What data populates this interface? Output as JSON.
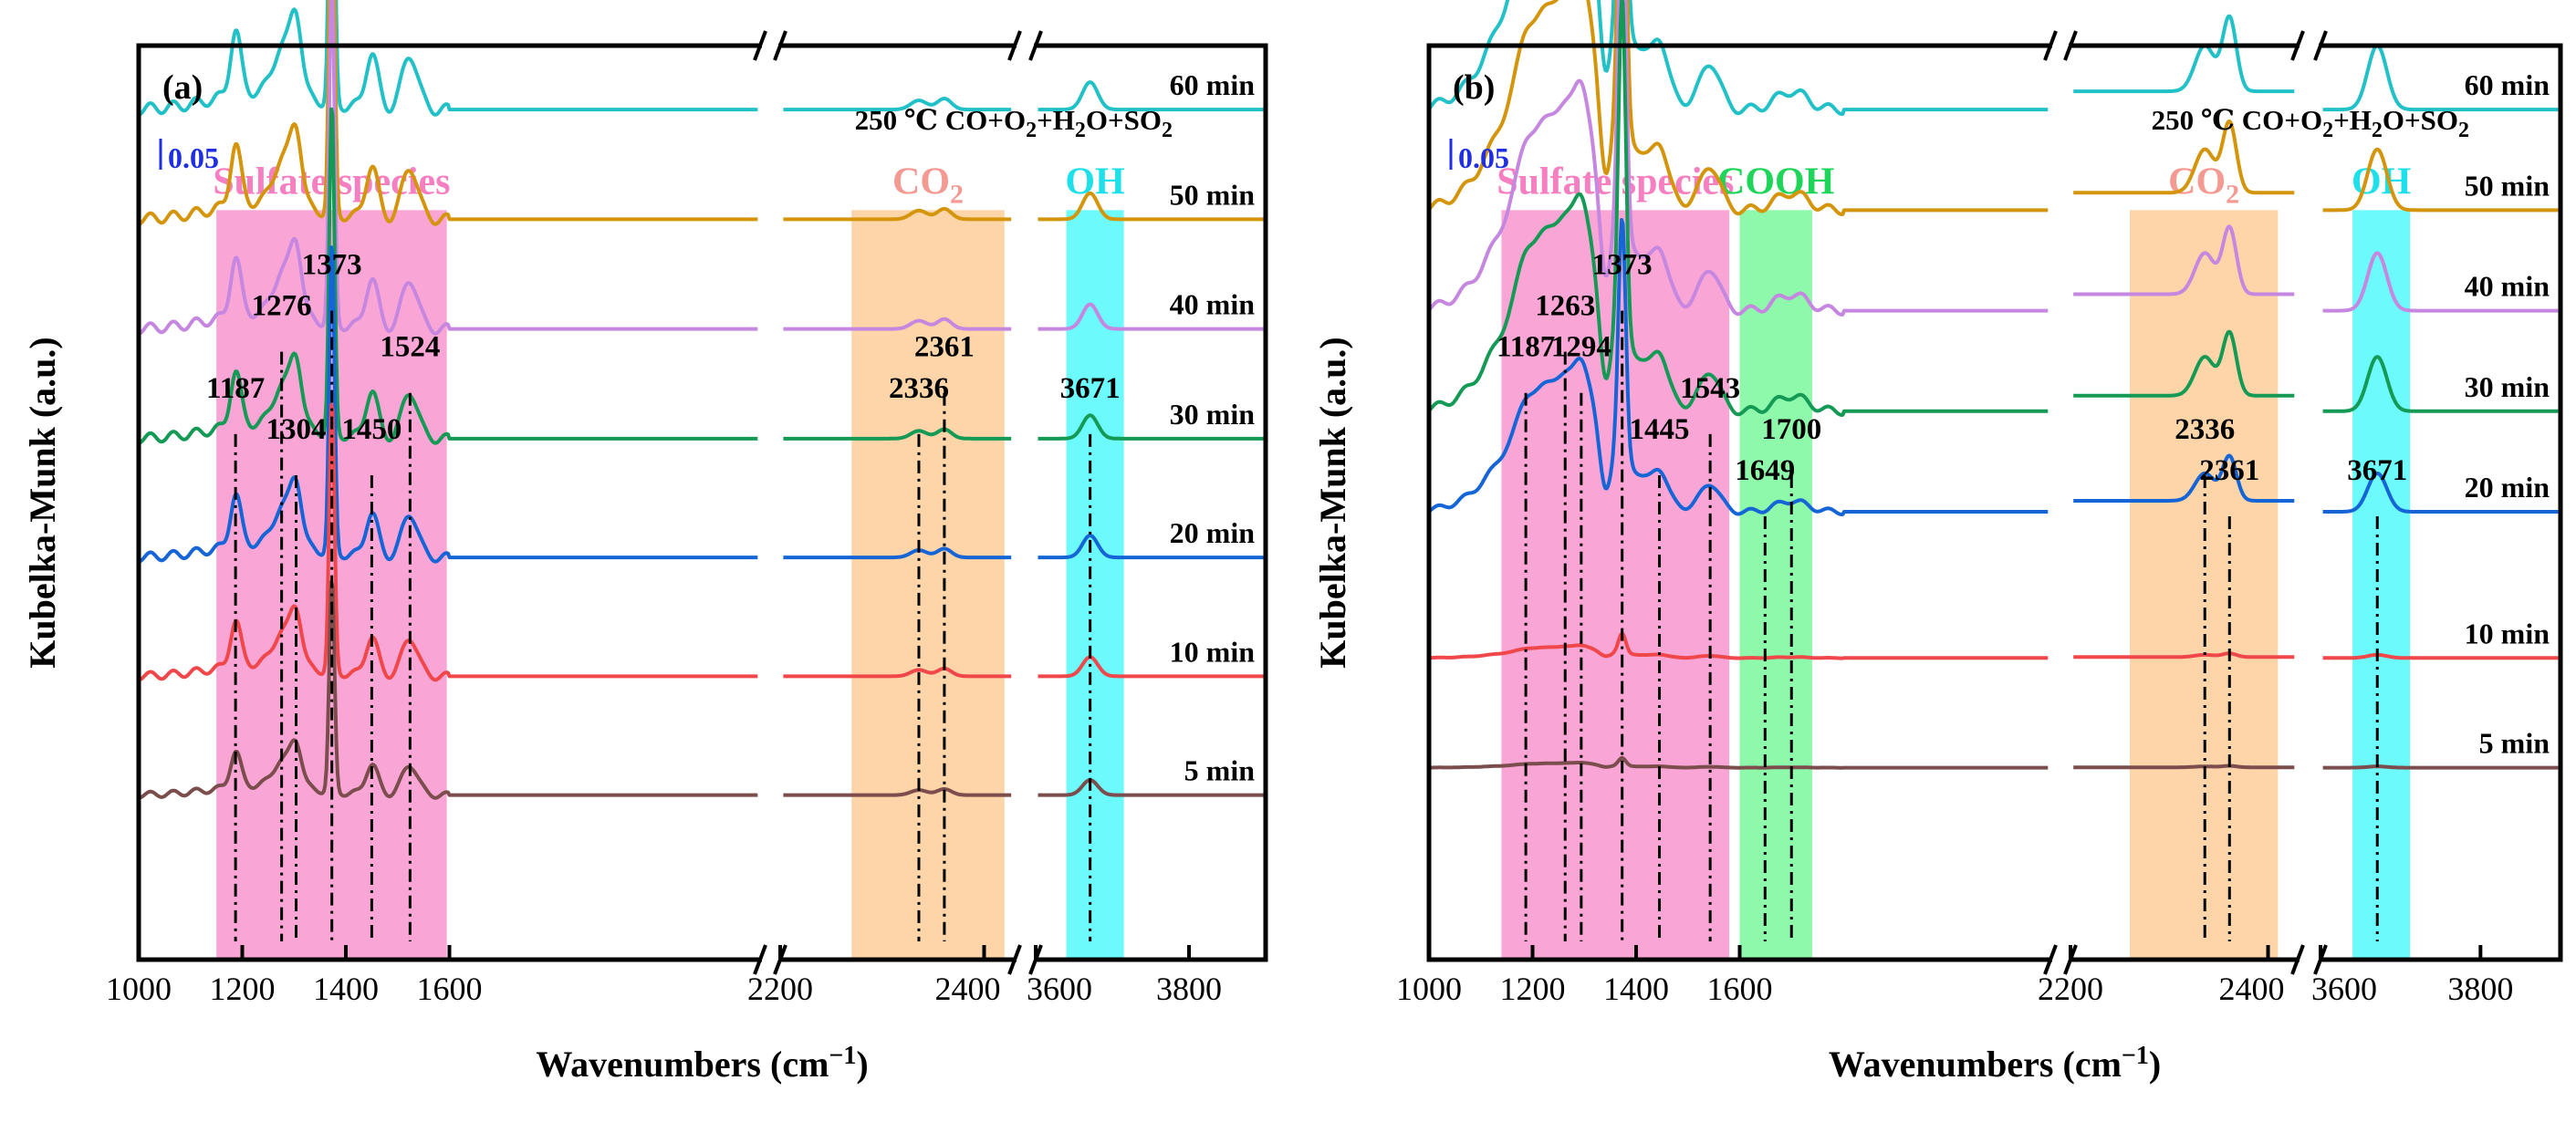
{
  "chart_data": [
    {
      "type": "line",
      "panel_label": "(a)",
      "condition_prefix": "250 ℃  CO+O",
      "condition_sub1": "2",
      "condition_mid": "+H",
      "condition_sub2": "2",
      "condition_mid2": "O+SO",
      "condition_sub3": "2",
      "scale_bar": "0.05",
      "ylabel": "Kubelka-Munk (a.u.)",
      "xlabel_main": "Wavenumbers (cm",
      "xlabel_sup": "−1",
      "xlabel_end": ")",
      "x_segments": [
        [
          1000,
          2200
        ],
        [
          2200,
          2430
        ],
        [
          3600,
          3900
        ]
      ],
      "x_ticks": [
        "1000",
        "1200",
        "1400",
        "1600",
        "2200",
        "2400",
        "3600",
        "3800"
      ],
      "regions": [
        {
          "label": "Sulfate species",
          "x_range": [
            1150,
            1595
          ],
          "color": "#f9a6d6",
          "label_color": "#f57fc0"
        },
        {
          "label": "CO",
          "sub": "2",
          "x_range": [
            2270,
            2420
          ],
          "color": "#fdd5a8",
          "label_color": "#f49a93"
        },
        {
          "label": "OH",
          "x_range": [
            3640,
            3715
          ],
          "color": "#6dfafc",
          "label_color": "#1ee0ea"
        }
      ],
      "peaks": [
        {
          "label": "1187",
          "x": 1187,
          "row": 3
        },
        {
          "label": "1276",
          "x": 1276,
          "row": 1
        },
        {
          "label": "1304",
          "x": 1304,
          "row": 4
        },
        {
          "label": "1373",
          "x": 1373,
          "row": 0
        },
        {
          "label": "1450",
          "x": 1450,
          "row": 4
        },
        {
          "label": "1524",
          "x": 1524,
          "row": 2
        },
        {
          "label": "2336",
          "x": 2336,
          "row": 3
        },
        {
          "label": "2361",
          "x": 2361,
          "row": 2
        },
        {
          "label": "3671",
          "x": 3671,
          "row": 3
        }
      ],
      "series": [
        {
          "name": "60 min",
          "color": "#22c1c8",
          "baseline": 0.93,
          "amp": 1.0
        },
        {
          "name": "50 min",
          "color": "#d4950c",
          "baseline": 0.81,
          "amp": 0.95
        },
        {
          "name": "40 min",
          "color": "#c587e0",
          "baseline": 0.69,
          "amp": 0.9
        },
        {
          "name": "30 min",
          "color": "#149a55",
          "baseline": 0.57,
          "amp": 0.85
        },
        {
          "name": "20 min",
          "color": "#1565d6",
          "baseline": 0.44,
          "amp": 0.8
        },
        {
          "name": "10 min",
          "color": "#f0474a",
          "baseline": 0.31,
          "amp": 0.7
        },
        {
          "name": "5 min",
          "color": "#7b4d4d",
          "baseline": 0.18,
          "amp": 0.55
        }
      ]
    },
    {
      "type": "line",
      "panel_label": "(b)",
      "condition_prefix": "250 ℃  CO+O",
      "condition_sub1": "2",
      "condition_mid": "+H",
      "condition_sub2": "2",
      "condition_mid2": "O+SO",
      "condition_sub3": "2",
      "scale_bar": "0.05",
      "ylabel": "Kubelka-Munk (a.u.)",
      "xlabel_main": "Wavenumbers (cm",
      "xlabel_sup": "−1",
      "xlabel_end": ")",
      "x_segments": [
        [
          1000,
          2200
        ],
        [
          2200,
          2430
        ],
        [
          3600,
          3900
        ]
      ],
      "x_ticks": [
        "1000",
        "1200",
        "1400",
        "1600",
        "2200",
        "2400",
        "3600",
        "3800"
      ],
      "regions": [
        {
          "label": "Sulfate species",
          "x_range": [
            1140,
            1580
          ],
          "color": "#f9a6d6",
          "label_color": "#f57fc0"
        },
        {
          "label": "COOH",
          "x_range": [
            1600,
            1740
          ],
          "color": "#8ef9ab",
          "label_color": "#1ed55a"
        },
        {
          "label": "CO",
          "sub": "2",
          "x_range": [
            2260,
            2410
          ],
          "color": "#fdd5a8",
          "label_color": "#f49a93"
        },
        {
          "label": "OH",
          "x_range": [
            3640,
            3712
          ],
          "color": "#6dfafc",
          "label_color": "#1ee0ea"
        }
      ],
      "peaks": [
        {
          "label": "1187",
          "x": 1187,
          "row": 2
        },
        {
          "label": "1263",
          "x": 1263,
          "row": 1
        },
        {
          "label": "1294",
          "x": 1294,
          "row": 2
        },
        {
          "label": "1373",
          "x": 1373,
          "row": 0
        },
        {
          "label": "1445",
          "x": 1445,
          "row": 4
        },
        {
          "label": "1543",
          "x": 1543,
          "row": 3
        },
        {
          "label": "1649",
          "x": 1649,
          "row": 5
        },
        {
          "label": "1700",
          "x": 1700,
          "row": 4
        },
        {
          "label": "2336",
          "x": 2336,
          "row": 4
        },
        {
          "label": "2361",
          "x": 2361,
          "row": 5
        },
        {
          "label": "3671",
          "x": 3671,
          "row": 5
        }
      ],
      "series": [
        {
          "name": "60 min",
          "color": "#22c1c8",
          "baseline": 0.93,
          "amp": 1.0
        },
        {
          "name": "50 min",
          "color": "#d4950c",
          "baseline": 0.82,
          "amp": 0.95
        },
        {
          "name": "40 min",
          "color": "#c587e0",
          "baseline": 0.71,
          "amp": 0.9
        },
        {
          "name": "30 min",
          "color": "#149a55",
          "baseline": 0.6,
          "amp": 0.85
        },
        {
          "name": "20 min",
          "color": "#1565d6",
          "baseline": 0.49,
          "amp": 0.6
        },
        {
          "name": "10 min",
          "color": "#f0474a",
          "baseline": 0.33,
          "amp": 0.05
        },
        {
          "name": "5 min",
          "color": "#7b4d4d",
          "baseline": 0.21,
          "amp": 0.02
        }
      ]
    }
  ]
}
